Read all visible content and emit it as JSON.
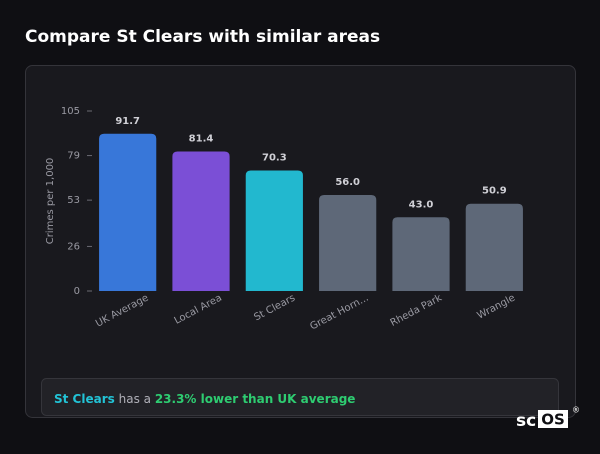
{
  "chart_data": {
    "type": "bar",
    "title": "Compare St Clears with similar areas",
    "y_label": "Crimes per 1,000",
    "categories": [
      "UK Average",
      "Local Area",
      "St Clears",
      "Great Horn...",
      "Rheda Park",
      "Wrangle"
    ],
    "values": [
      91.7,
      81.4,
      70.3,
      56,
      43,
      50.9
    ],
    "value_labels": [
      "91.7",
      "81.4",
      "70.3",
      "56.0",
      "43.0",
      "50.9"
    ],
    "colors": [
      "#3877d9",
      "#7b4fd6",
      "#22b8cf",
      "#5e6878",
      "#5e6878",
      "#5e6878"
    ],
    "ylim": [
      0,
      105
    ],
    "yticks": [
      0,
      26,
      53,
      79,
      105
    ],
    "grid": false
  },
  "insight": {
    "area": "St Clears",
    "text": "has a",
    "highlight": "23.3% lower than UK average"
  },
  "logo": {
    "prefix": "sc",
    "mark": "OS",
    "reg": "®"
  }
}
